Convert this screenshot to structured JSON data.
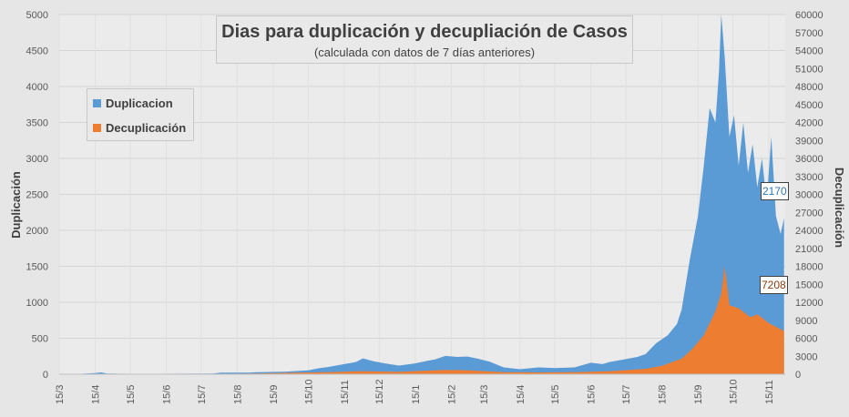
{
  "chart_data": {
    "type": "area",
    "title": "Dias para duplicación y decupliación de Casos",
    "subtitle": "(calculada con datos de 7 días anteriores)",
    "ylabel": "Duplicación",
    "y2label": "Decuplicación",
    "ylim": [
      0,
      5000
    ],
    "y2lim": [
      0,
      60000
    ],
    "grid": true,
    "legend_position": "top-left",
    "y_ticks": [
      "0",
      "500",
      "1000",
      "1500",
      "2000",
      "2500",
      "3000",
      "3500",
      "4000",
      "4500",
      "5000"
    ],
    "y2_ticks": [
      "0",
      "3000",
      "6000",
      "9000",
      "12000",
      "15000",
      "18000",
      "21000",
      "24000",
      "27000",
      "30000",
      "33000",
      "36000",
      "39000",
      "42000",
      "45000",
      "48000",
      "51000",
      "54000",
      "57000",
      "60000"
    ],
    "x_ticks": [
      "15/3",
      "15/4",
      "15/5",
      "15/6",
      "15/7",
      "15/8",
      "15/9",
      "15/10",
      "15/11",
      "15/12",
      "15/1",
      "15/2",
      "15/3",
      "15/4",
      "15/5",
      "15/6",
      "15/7",
      "15/8",
      "15/9",
      "15/10",
      "15/11"
    ],
    "x_start": "2020-03-15",
    "series": [
      {
        "name": "Duplicacion",
        "axis": "left",
        "color": "#5b9bd5",
        "points": [
          [
            "2020-04-01",
            5
          ],
          [
            "2020-04-15",
            15
          ],
          [
            "2020-04-20",
            25
          ],
          [
            "2020-04-25",
            10
          ],
          [
            "2020-05-20",
            5
          ],
          [
            "2020-07-01",
            8
          ],
          [
            "2020-07-25",
            10
          ],
          [
            "2020-08-01",
            22
          ],
          [
            "2020-08-25",
            22
          ],
          [
            "2020-09-01",
            28
          ],
          [
            "2020-09-25",
            35
          ],
          [
            "2020-10-01",
            40
          ],
          [
            "2020-10-15",
            55
          ],
          [
            "2020-10-25",
            85
          ],
          [
            "2020-11-01",
            100
          ],
          [
            "2020-11-15",
            140
          ],
          [
            "2020-11-25",
            170
          ],
          [
            "2020-12-01",
            220
          ],
          [
            "2020-12-10",
            180
          ],
          [
            "2020-12-20",
            150
          ],
          [
            "2021-01-01",
            120
          ],
          [
            "2021-01-15",
            150
          ],
          [
            "2021-01-25",
            185
          ],
          [
            "2021-02-01",
            205
          ],
          [
            "2021-02-10",
            255
          ],
          [
            "2021-02-20",
            240
          ],
          [
            "2021-03-01",
            245
          ],
          [
            "2021-03-10",
            215
          ],
          [
            "2021-03-20",
            175
          ],
          [
            "2021-04-01",
            95
          ],
          [
            "2021-04-15",
            70
          ],
          [
            "2021-05-01",
            95
          ],
          [
            "2021-05-15",
            85
          ],
          [
            "2021-06-01",
            95
          ],
          [
            "2021-06-15",
            160
          ],
          [
            "2021-06-25",
            140
          ],
          [
            "2021-07-01",
            170
          ],
          [
            "2021-07-15",
            210
          ],
          [
            "2021-07-25",
            240
          ],
          [
            "2021-08-01",
            280
          ],
          [
            "2021-08-10",
            430
          ],
          [
            "2021-08-20",
            540
          ],
          [
            "2021-08-28",
            700
          ],
          [
            "2021-09-01",
            900
          ],
          [
            "2021-09-08",
            1600
          ],
          [
            "2021-09-15",
            2200
          ],
          [
            "2021-09-20",
            2900
          ],
          [
            "2021-09-25",
            3700
          ],
          [
            "2021-09-30",
            3500
          ],
          [
            "2021-10-03",
            4200
          ],
          [
            "2021-10-05",
            5000
          ],
          [
            "2021-10-08",
            4400
          ],
          [
            "2021-10-12",
            3300
          ],
          [
            "2021-10-16",
            3600
          ],
          [
            "2021-10-20",
            2900
          ],
          [
            "2021-10-24",
            3500
          ],
          [
            "2021-10-28",
            2800
          ],
          [
            "2021-11-01",
            3200
          ],
          [
            "2021-11-05",
            2600
          ],
          [
            "2021-11-09",
            3000
          ],
          [
            "2021-11-13",
            2400
          ],
          [
            "2021-11-17",
            3300
          ],
          [
            "2021-11-21",
            2200
          ],
          [
            "2021-11-25",
            1950
          ],
          [
            "2021-11-28",
            2170
          ]
        ]
      },
      {
        "name": "Decuplicación",
        "axis": "right",
        "color": "#ed7d31",
        "points": [
          [
            "2020-04-01",
            10
          ],
          [
            "2020-06-01",
            20
          ],
          [
            "2020-08-01",
            60
          ],
          [
            "2020-09-01",
            120
          ],
          [
            "2020-10-01",
            250
          ],
          [
            "2020-11-01",
            350
          ],
          [
            "2020-11-20",
            450
          ],
          [
            "2020-12-01",
            500
          ],
          [
            "2021-01-01",
            400
          ],
          [
            "2021-01-20",
            550
          ],
          [
            "2021-02-10",
            700
          ],
          [
            "2021-03-01",
            650
          ],
          [
            "2021-04-01",
            350
          ],
          [
            "2021-05-01",
            300
          ],
          [
            "2021-06-01",
            350
          ],
          [
            "2021-07-01",
            500
          ],
          [
            "2021-08-01",
            900
          ],
          [
            "2021-08-15",
            1400
          ],
          [
            "2021-09-01",
            2600
          ],
          [
            "2021-09-10",
            4200
          ],
          [
            "2021-09-20",
            6500
          ],
          [
            "2021-09-30",
            10500
          ],
          [
            "2021-10-05",
            13500
          ],
          [
            "2021-10-08",
            18000
          ],
          [
            "2021-10-12",
            11500
          ],
          [
            "2021-10-20",
            11000
          ],
          [
            "2021-10-30",
            9500
          ],
          [
            "2021-11-05",
            10000
          ],
          [
            "2021-11-15",
            8500
          ],
          [
            "2021-11-25",
            7500
          ],
          [
            "2021-11-28",
            7208
          ]
        ]
      }
    ],
    "end_labels": [
      {
        "value": "2170",
        "color": "#2e75b6",
        "series": "Duplicacion"
      },
      {
        "value": "7208",
        "color": "#833c0b",
        "series": "Decuplicación"
      }
    ]
  }
}
